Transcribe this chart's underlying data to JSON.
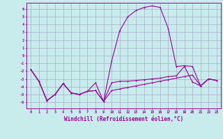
{
  "background_color": "#c8ecec",
  "grid_color": "#aaaacc",
  "line_color": "#990099",
  "xlabel": "Windchill (Refroidissement éolien,°C)",
  "xlabel_fontsize": 5.5,
  "ylabel_ticks": [
    -6,
    -5,
    -4,
    -3,
    -2,
    -1,
    0,
    1,
    2,
    3,
    4,
    5,
    6
  ],
  "xlim": [
    -0.5,
    23.5
  ],
  "ylim": [
    -6.8,
    6.8
  ],
  "x": [
    0,
    1,
    2,
    3,
    4,
    5,
    6,
    7,
    8,
    9,
    10,
    11,
    12,
    13,
    14,
    15,
    16,
    17,
    18,
    19,
    20,
    21,
    22,
    23
  ],
  "curve1": [
    -1.8,
    -3.3,
    -5.8,
    -5.0,
    -3.6,
    -4.8,
    -5.0,
    -4.6,
    -4.5,
    -5.9,
    -0.7,
    3.2,
    5.0,
    5.8,
    6.2,
    6.4,
    6.2,
    3.5,
    -1.4,
    -1.3,
    -1.4,
    -3.9,
    -3.0,
    -3.2
  ],
  "curve2": [
    -1.8,
    -3.3,
    -5.8,
    -5.0,
    -3.6,
    -4.8,
    -5.0,
    -4.6,
    -3.5,
    -5.9,
    -3.5,
    -3.3,
    -3.3,
    -3.2,
    -3.1,
    -3.0,
    -2.9,
    -2.7,
    -2.6,
    -1.4,
    -3.4,
    -3.9,
    -3.0,
    -3.2
  ],
  "curve3": [
    -1.8,
    -3.3,
    -5.8,
    -5.0,
    -3.6,
    -4.8,
    -5.0,
    -4.6,
    -4.5,
    -5.9,
    -4.5,
    -4.3,
    -4.1,
    -3.9,
    -3.7,
    -3.5,
    -3.3,
    -3.1,
    -2.9,
    -2.7,
    -2.5,
    -3.9,
    -3.0,
    -3.2
  ]
}
